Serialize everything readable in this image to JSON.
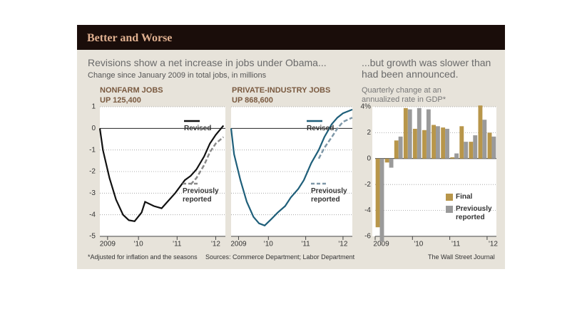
{
  "header": "Better and Worse",
  "jobs_title": "Revisions show a net increase in jobs under Obama...",
  "jobs_subtitle": "Change since January 2009 in total jobs, in millions",
  "footnote": "*Adjusted for inflation and the seasons",
  "source": "Sources: Commerce Department; Labor Department",
  "credit": "The Wall Street Journal",
  "chart_data": [
    {
      "type": "line",
      "title": "NONFARM JOBS",
      "subtitle": "UP 125,400",
      "x": [
        2009.0,
        2009.08,
        2009.25,
        2009.42,
        2009.6,
        2009.75,
        2009.9,
        2010.08,
        2010.17,
        2010.4,
        2010.6,
        2010.8,
        2010.95,
        2011.2,
        2011.35,
        2011.5,
        2011.7,
        2011.85,
        2012.0,
        2012.2
      ],
      "series": [
        {
          "name": "Revised",
          "color": "#111111",
          "values": [
            0,
            -1,
            -2.3,
            -3.3,
            -4,
            -4.25,
            -4.3,
            -3.9,
            -3.4,
            -3.6,
            -3.7,
            -3.3,
            -3.0,
            -2.4,
            -2.2,
            -1.9,
            -1.3,
            -0.7,
            -0.3,
            0.13
          ]
        },
        {
          "name": "Previously reported",
          "color": "#8a8a8a",
          "dashed": true,
          "values": [
            null,
            null,
            null,
            null,
            null,
            null,
            null,
            null,
            null,
            null,
            null,
            null,
            null,
            null,
            -2.6,
            -2.3,
            -1.7,
            -1.1,
            -0.7,
            -0.4
          ]
        }
      ],
      "xlim": [
        2009.0,
        2012.25
      ],
      "xticks": [
        {
          "value": 2009.2,
          "label": "2009"
        },
        {
          "value": 2010.0,
          "label": "'10"
        },
        {
          "value": 2011.0,
          "label": "'11"
        },
        {
          "value": 2012.0,
          "label": "'12"
        }
      ],
      "ylim": [
        -5,
        1
      ],
      "yticks": [
        -5,
        -4,
        -3,
        -2,
        -1,
        0,
        1
      ],
      "grid": true
    },
    {
      "type": "line",
      "title": "PRIVATE-INDUSTRY JOBS",
      "subtitle": "UP 868,600",
      "x": [
        2009.0,
        2009.08,
        2009.25,
        2009.42,
        2009.6,
        2009.75,
        2009.9,
        2010.08,
        2010.25,
        2010.45,
        2010.6,
        2010.8,
        2010.95,
        2011.15,
        2011.35,
        2011.5,
        2011.7,
        2011.85,
        2012.0,
        2012.25
      ],
      "series": [
        {
          "name": "Revised",
          "color": "#1f5f7a",
          "values": [
            0,
            -1.2,
            -2.4,
            -3.4,
            -4.1,
            -4.4,
            -4.5,
            -4.2,
            -3.9,
            -3.6,
            -3.2,
            -2.8,
            -2.4,
            -1.6,
            -1.0,
            -0.4,
            0.2,
            0.5,
            0.7,
            0.87
          ]
        },
        {
          "name": "Previously reported",
          "color": "#7f98a8",
          "dashed": true,
          "values": [
            null,
            null,
            null,
            null,
            null,
            null,
            null,
            null,
            null,
            null,
            null,
            null,
            null,
            null,
            -1.4,
            -0.9,
            -0.4,
            0,
            0.3,
            0.5
          ]
        }
      ],
      "xlim": [
        2009.0,
        2012.25
      ],
      "xticks": [
        {
          "value": 2009.2,
          "label": "2009"
        },
        {
          "value": 2010.0,
          "label": "'10"
        },
        {
          "value": 2011.0,
          "label": "'11"
        },
        {
          "value": 2012.0,
          "label": "'12"
        }
      ],
      "ylim": [
        -5,
        1
      ],
      "yticks": [
        -5,
        -4,
        -3,
        -2,
        -1,
        0,
        1
      ],
      "grid": true
    },
    {
      "type": "bar",
      "title": "...but growth was slower than had been announced.",
      "subtitle": "Quarterly change at an annualized rate in GDP*",
      "categories": [
        "2009",
        null,
        null,
        null,
        "'10",
        null,
        null,
        null,
        "'11",
        null,
        null,
        null,
        "'12"
      ],
      "series": [
        {
          "name": "Final",
          "color": "#b8964a",
          "values": [
            -5.3,
            -0.3,
            1.4,
            3.9,
            2.3,
            2.2,
            2.6,
            2.4,
            0.1,
            2.5,
            1.3,
            4.1,
            2.0
          ]
        },
        {
          "name": "Previously reported",
          "color": "#9a9a9a",
          "values": [
            -6.4,
            -0.7,
            1.7,
            3.8,
            3.9,
            3.8,
            2.5,
            2.3,
            0.4,
            1.3,
            1.8,
            3.0,
            1.7
          ]
        }
      ],
      "ylim": [
        -6,
        4
      ],
      "yticks": [
        -6,
        -4,
        -2,
        0,
        2,
        {
          "value": 4,
          "label": "4%"
        }
      ],
      "grid": true
    }
  ]
}
